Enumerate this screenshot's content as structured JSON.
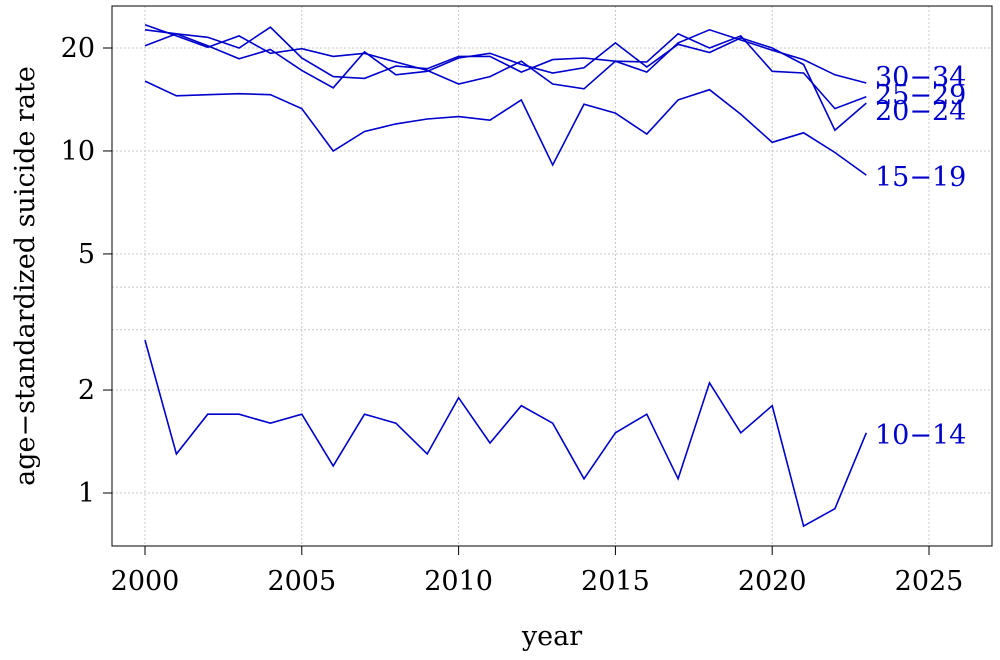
{
  "chart_data": {
    "type": "line",
    "xlabel": "year",
    "ylabel": "age−standardized suicide rate",
    "yscale": "log",
    "xlim": [
      1999,
      2026
    ],
    "ylim": [
      0.8,
      25
    ],
    "x_ticks": [
      2000,
      2005,
      2010,
      2015,
      2020,
      2025
    ],
    "x_tick_labels": [
      "2000",
      "2005",
      "2010",
      "2015",
      "2020",
      "2025"
    ],
    "y_ticks": [
      1,
      2,
      5,
      10,
      20
    ],
    "y_tick_labels": [
      "1",
      "2",
      "5",
      "10",
      "20"
    ],
    "y_grid": [
      1,
      2,
      3,
      4,
      5,
      10,
      20
    ],
    "grid": true,
    "line_color": "#0000cc",
    "x": [
      2000,
      2001,
      2002,
      2003,
      2004,
      2005,
      2006,
      2007,
      2008,
      2009,
      2010,
      2011,
      2012,
      2013,
      2014,
      2015,
      2016,
      2017,
      2018,
      2019,
      2020,
      2021,
      2022,
      2023
    ],
    "series": [
      {
        "name": "10−14",
        "values": [
          2.8,
          1.3,
          1.7,
          1.7,
          1.6,
          1.7,
          1.2,
          1.7,
          1.6,
          1.3,
          1.9,
          1.4,
          1.8,
          1.6,
          1.1,
          1.5,
          1.7,
          1.1,
          2.1,
          1.5,
          1.8,
          0.8,
          0.9,
          1.5
        ]
      },
      {
        "name": "15−19",
        "values": [
          16.0,
          14.5,
          14.6,
          14.7,
          14.6,
          13.3,
          10.0,
          11.4,
          12.0,
          12.4,
          12.6,
          12.3,
          14.1,
          9.1,
          13.7,
          12.9,
          11.2,
          14.1,
          15.1,
          12.8,
          10.6,
          11.3,
          9.9,
          8.5
        ]
      },
      {
        "name": "20−24",
        "values": [
          22.6,
          22.0,
          20.3,
          18.6,
          19.8,
          17.2,
          15.3,
          19.5,
          16.7,
          17.1,
          18.7,
          19.3,
          17.9,
          16.9,
          17.5,
          20.7,
          17.6,
          20.5,
          19.4,
          21.4,
          20.0,
          17.9,
          11.5,
          13.8
        ]
      },
      {
        "name": "25−29",
        "values": [
          23.4,
          21.7,
          20.1,
          21.7,
          19.3,
          19.9,
          18.9,
          19.3,
          18.2,
          17.2,
          15.7,
          16.5,
          18.3,
          15.7,
          15.2,
          18.3,
          18.2,
          22.0,
          20.0,
          21.7,
          17.1,
          16.9,
          13.3,
          14.4
        ]
      },
      {
        "name": "30−34",
        "values": [
          20.3,
          22.0,
          21.5,
          20.0,
          23.0,
          18.7,
          16.5,
          16.3,
          17.7,
          17.4,
          18.9,
          18.9,
          17.0,
          18.5,
          18.7,
          18.3,
          17.0,
          20.7,
          22.6,
          21.1,
          19.7,
          18.5,
          16.7,
          15.8
        ]
      }
    ]
  }
}
